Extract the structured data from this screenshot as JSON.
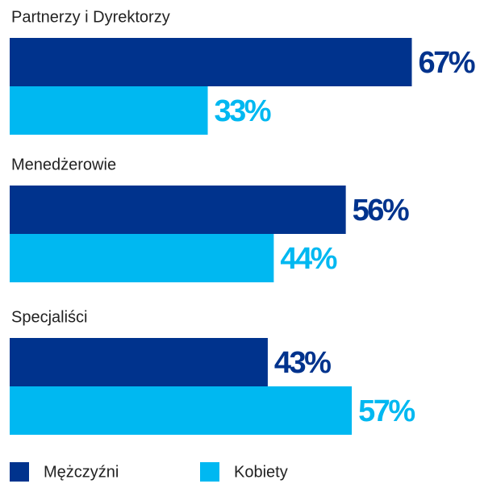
{
  "chart_data": {
    "type": "bar",
    "categories": [
      "Partnerzy i Dyrektorzy",
      "Menedżerowie",
      "Specjaliści"
    ],
    "series": [
      {
        "name": "Mężczyźni",
        "color": "#00338d",
        "values": [
          67,
          56,
          43
        ],
        "value_labels": [
          "67%",
          "56%",
          "43%"
        ]
      },
      {
        "name": "Kobiety",
        "color": "#00b8f1",
        "values": [
          33,
          44,
          57
        ],
        "value_labels": [
          "33%",
          "44%",
          "57%"
        ]
      }
    ]
  }
}
